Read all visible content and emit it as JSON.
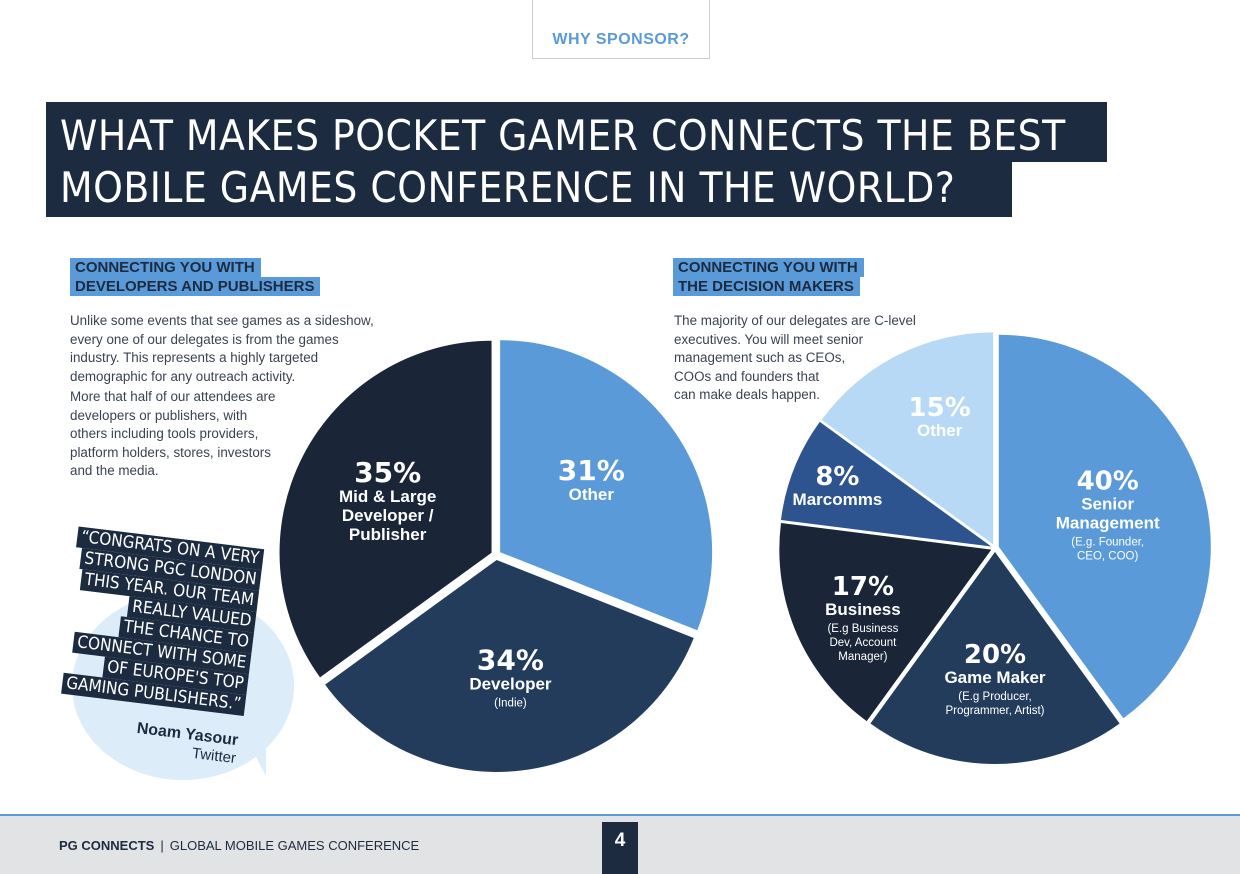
{
  "header": {
    "tab_label": "WHY SPONSOR?"
  },
  "hero": {
    "line1": "WHAT MAKES POCKET GAMER CONNECTS THE BEST",
    "line2": "MOBILE GAMES CONFERENCE IN THE WORLD?"
  },
  "left_section": {
    "heading_line1": "CONNECTING YOU WITH",
    "heading_line2": "DEVELOPERS AND PUBLISHERS",
    "para1_lines": [
      "Unlike some events that see games as a sideshow,",
      "every one of our delegates is from the games",
      "industry. This represents a highly targeted",
      "demographic for any outreach activity."
    ],
    "para2_lines": [
      "More that half of our attendees are",
      "developers or publishers, with",
      "others including tools providers,",
      "platform holders, stores, investors",
      "and the media."
    ]
  },
  "right_section": {
    "heading_line1": "CONNECTING YOU WITH",
    "heading_line2": "THE DECISION MAKERS",
    "para_lines": [
      "The majority of our delegates are C-level",
      "executives. You will meet senior",
      "management such as CEOs,",
      "COOs and founders that",
      "can make deals happen."
    ]
  },
  "colors": {
    "navy": "#1c2b40",
    "dark": "#1a2538",
    "mid_navy": "#243c5c",
    "blue": "#5a9ad8",
    "light_blue": "#b7d9f5",
    "royal": "#2e5490",
    "accent_green": "#8ecf3d"
  },
  "chart_data": [
    {
      "type": "pie",
      "slices": [
        {
          "pct": "31%",
          "value": 31,
          "label": "Other",
          "sub": "",
          "color": "#5a9ad8"
        },
        {
          "pct": "34%",
          "value": 34,
          "label": "Developer",
          "sub": "(Indie)",
          "color": "#243c5c"
        },
        {
          "pct": "35%",
          "value": 35,
          "label": "Mid & Large Developer / Publisher",
          "sub": "",
          "color": "#1a2538"
        }
      ]
    },
    {
      "type": "pie",
      "slices": [
        {
          "pct": "40%",
          "value": 40,
          "label": "Senior Management",
          "sub": "(E.g. Founder, CEO, COO)",
          "color": "#5a9ad8"
        },
        {
          "pct": "20%",
          "value": 20,
          "label": "Game Maker",
          "sub": "(E.g Producer, Programmer, Artist)",
          "color": "#243c5c"
        },
        {
          "pct": "17%",
          "value": 17,
          "label": "Business",
          "sub": "(E.g Business Dev, Account Manager)",
          "color": "#1a2538"
        },
        {
          "pct": "8%",
          "value": 8,
          "label": "Marcomms",
          "sub": "",
          "color": "#2e5490"
        },
        {
          "pct": "15%",
          "value": 15,
          "label": "Other",
          "sub": "",
          "color": "#b7d9f5"
        }
      ]
    }
  ],
  "quote": {
    "lines": [
      "“CONGRATS ON A VERY",
      "STRONG PGC LONDON",
      "THIS YEAR. OUR TEAM",
      "REALLY VALUED",
      "THE CHANCE TO",
      "CONNECT WITH SOME",
      "OF EUROPE'S TOP",
      "GAMING PUBLISHERS.”"
    ],
    "author": "Noam Yasour",
    "source": "Twitter"
  },
  "footer": {
    "brand": "PG CONNECTS",
    "tagline": "GLOBAL MOBILE GAMES CONFERENCE",
    "page": "4"
  }
}
